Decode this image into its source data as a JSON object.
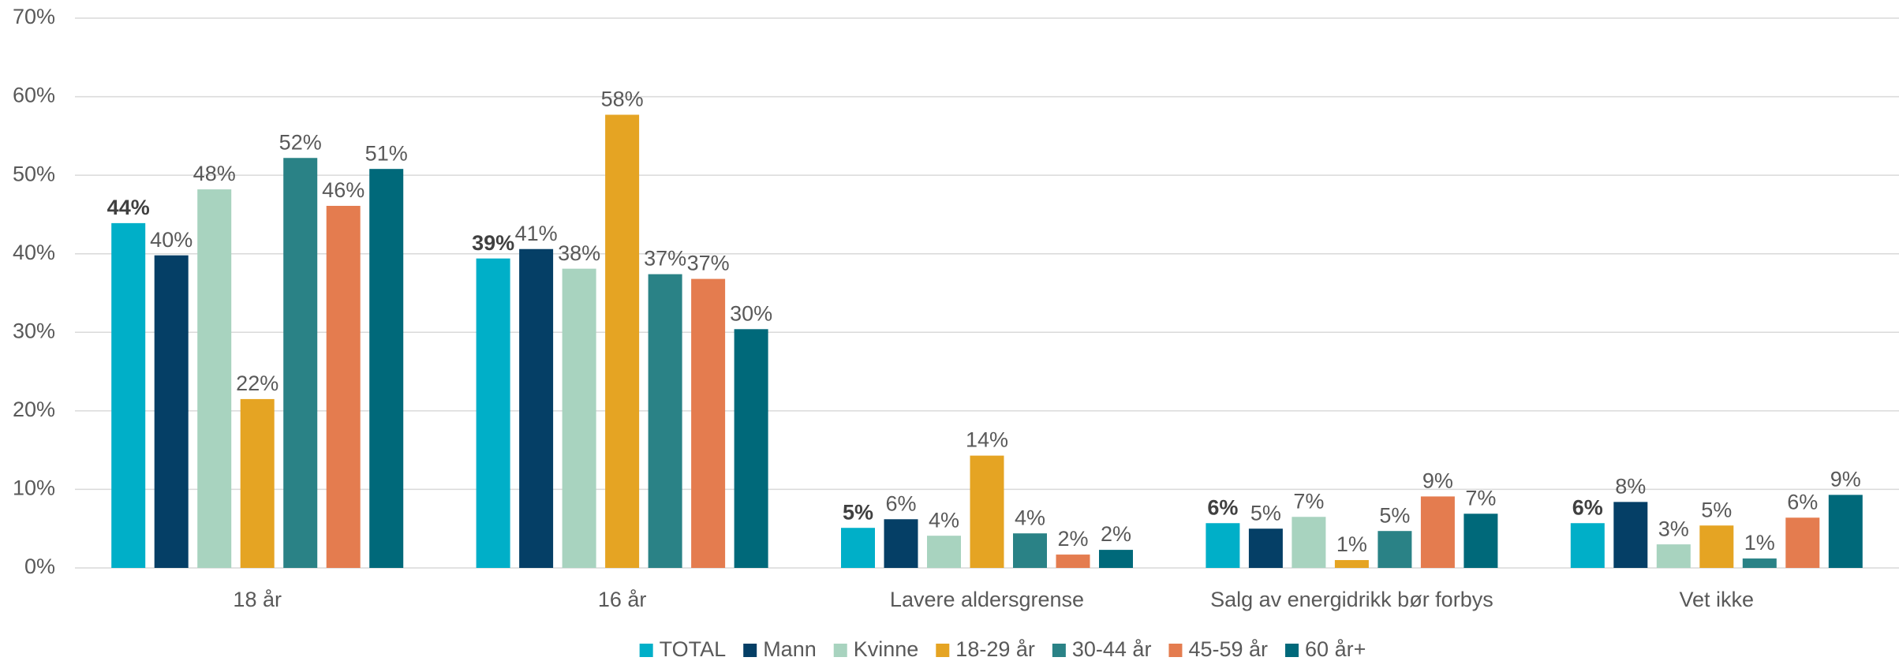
{
  "chart_data": {
    "type": "bar",
    "categories": [
      "18 år",
      "16 år",
      "Lavere aldersgrense",
      "Salg av energidrikk bør forbys",
      "Vet ikke"
    ],
    "series": [
      {
        "name": "TOTAL",
        "color": "#00afc8",
        "values": [
          43.9,
          39.4,
          5.1,
          5.7,
          5.7
        ],
        "value_labels": [
          "44%",
          "39%",
          "5%",
          "6%",
          "6%"
        ]
      },
      {
        "name": "Mann",
        "color": "#053f66",
        "values": [
          39.8,
          40.6,
          6.2,
          5.0,
          8.4
        ],
        "value_labels": [
          "40%",
          "41%",
          "6%",
          "5%",
          "8%"
        ]
      },
      {
        "name": "Kvinne",
        "color": "#a8d3bf",
        "values": [
          48.2,
          38.1,
          4.1,
          6.5,
          3.0
        ],
        "value_labels": [
          "48%",
          "38%",
          "4%",
          "7%",
          "3%"
        ]
      },
      {
        "name": "18-29 år",
        "color": "#e5a423",
        "values": [
          21.5,
          57.7,
          14.3,
          1.0,
          5.4
        ],
        "value_labels": [
          "22%",
          "58%",
          "14%",
          "1%",
          "5%"
        ]
      },
      {
        "name": "30-44 år",
        "color": "#2a8286",
        "values": [
          52.2,
          37.4,
          4.4,
          4.7,
          1.2
        ],
        "value_labels": [
          "52%",
          "37%",
          "4%",
          "5%",
          "1%"
        ]
      },
      {
        "name": "45-59 år",
        "color": "#e47c4f",
        "values": [
          46.1,
          36.8,
          1.7,
          9.1,
          6.4
        ],
        "value_labels": [
          "46%",
          "37%",
          "2%",
          "9%",
          "6%"
        ]
      },
      {
        "name": "60 år+",
        "color": "#00697a",
        "values": [
          50.8,
          30.4,
          2.3,
          6.9,
          9.3
        ],
        "value_labels": [
          "51%",
          "30%",
          "2%",
          "7%",
          "9%"
        ]
      }
    ],
    "ylim": [
      0,
      70
    ],
    "yticks": [
      {
        "value": 0,
        "label": "0%"
      },
      {
        "value": 10,
        "label": "10%"
      },
      {
        "value": 20,
        "label": "20%"
      },
      {
        "value": 30,
        "label": "30%"
      },
      {
        "value": 40,
        "label": "40%"
      },
      {
        "value": 50,
        "label": "50%"
      },
      {
        "value": 60,
        "label": "60%"
      },
      {
        "value": 70,
        "label": "70%"
      }
    ],
    "grid": true,
    "legend": "bottom"
  }
}
